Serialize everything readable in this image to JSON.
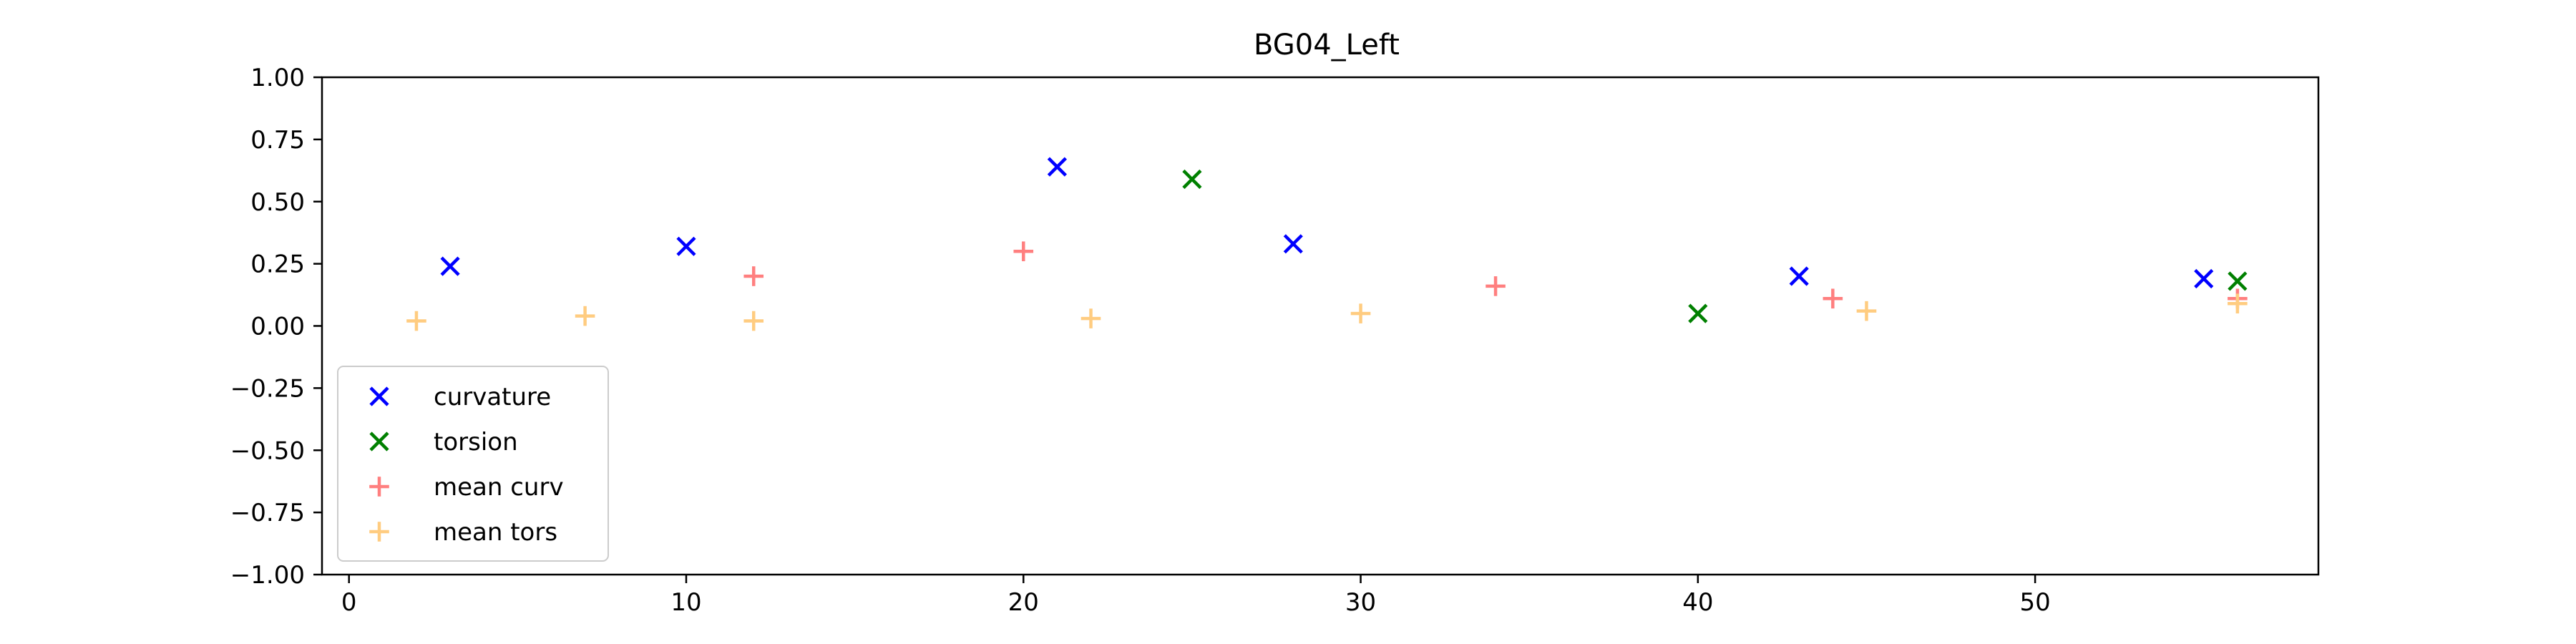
{
  "chart_data": {
    "type": "scatter",
    "title": "BG04_Left",
    "xlabel": "",
    "ylabel": "",
    "xlim": [
      -0.8,
      58.4
    ],
    "ylim": [
      -1.0,
      1.0
    ],
    "xticks": [
      0,
      10,
      20,
      30,
      40,
      50
    ],
    "yticks": [
      1.0,
      0.75,
      0.5,
      0.25,
      0.0,
      -0.25,
      -0.5,
      -0.75,
      -1.0
    ],
    "ytick_labels": [
      "1.00",
      "0.75",
      "0.50",
      "0.25",
      "0.00",
      "−0.25",
      "−0.50",
      "−0.75",
      "−1.00"
    ],
    "xtick_labels": [
      "0",
      "10",
      "20",
      "30",
      "40",
      "50"
    ],
    "grid": false,
    "legend_position": "lower-left",
    "series": [
      {
        "name": "curvature",
        "marker": "x",
        "color": "#0000ff",
        "x": [
          3,
          10,
          21,
          28,
          43,
          55
        ],
        "y": [
          0.24,
          0.32,
          0.64,
          0.33,
          0.2,
          0.19
        ]
      },
      {
        "name": "torsion",
        "marker": "x",
        "color": "#008000",
        "x": [
          25,
          40,
          56
        ],
        "y": [
          0.59,
          0.05,
          0.18
        ]
      },
      {
        "name": "mean curv",
        "marker": "+",
        "color": "#ff7f7f",
        "x": [
          12,
          20,
          34,
          44,
          56
        ],
        "y": [
          0.2,
          0.3,
          0.16,
          0.11,
          0.11
        ]
      },
      {
        "name": "mean tors",
        "marker": "+",
        "color": "#ffcc80",
        "x": [
          2,
          7,
          12,
          22,
          30,
          45,
          56
        ],
        "y": [
          0.02,
          0.04,
          0.02,
          0.03,
          0.05,
          0.06,
          0.09
        ]
      }
    ]
  }
}
